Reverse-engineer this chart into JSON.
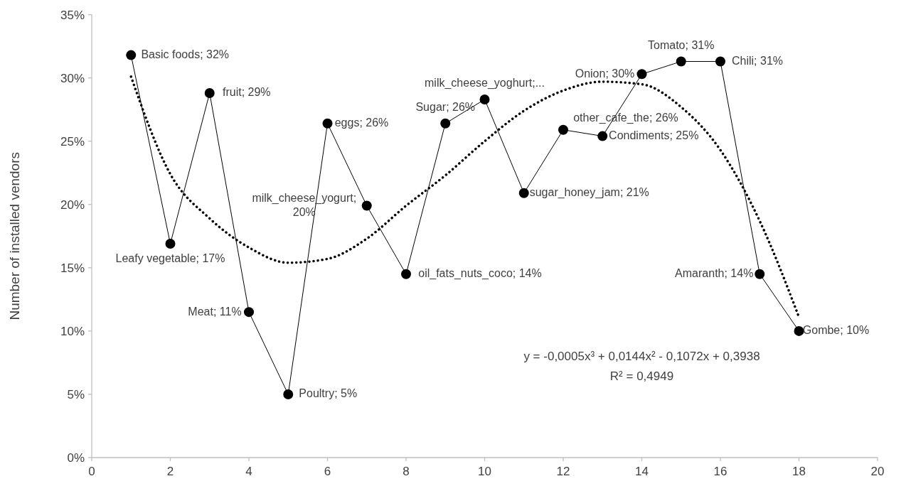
{
  "chart_data": {
    "type": "line",
    "ylabel": "Number of installed vendors",
    "x": [
      1,
      2,
      3,
      4,
      5,
      6,
      7,
      8,
      9,
      10,
      11,
      12,
      13,
      14,
      15,
      16,
      17,
      18
    ],
    "series": [
      {
        "color": "#000000",
        "marker": "circle",
        "line_style": "solid",
        "values": [
          31.8,
          16.9,
          28.8,
          11.5,
          5.0,
          26.4,
          19.9,
          14.5,
          26.4,
          28.3,
          20.9,
          25.9,
          25.4,
          30.3,
          31.3,
          31.3,
          14.5,
          10.0
        ],
        "value_labels": [
          "Basic foods; 32%",
          "Leafy vegetable; 17%",
          "fruit; 29%",
          "Meat; 11%",
          "Poultry; 5%",
          "eggs; 26%",
          "milk_cheese_yogurt;\n20%",
          "oil_fats_nuts_coco; 14%",
          "Sugar; 26%",
          "milk_cheese_yoghurt;...",
          "sugar_honey_jam; 21%",
          "other_cafe_the; 26%",
          "Condiments; 25%",
          "Onion; 30%",
          "Tomato; 31%",
          "Chili; 31%",
          "Amaranth; 14%",
          "Gombe; 10%"
        ]
      },
      {
        "color": "#000000",
        "marker": "none",
        "line_style": "dotted",
        "x": [
          1,
          2,
          3,
          4,
          5,
          6,
          7,
          8,
          9,
          10,
          11,
          12,
          13,
          14,
          15,
          16,
          17,
          18
        ],
        "values": [
          30.1,
          22.4,
          18.9,
          16.6,
          15.4,
          15.7,
          17.3,
          19.9,
          22.3,
          25.0,
          27.4,
          29.0,
          29.7,
          29.5,
          27.7,
          24.3,
          18.7,
          11.1
        ]
      }
    ],
    "xlim": [
      0,
      20
    ],
    "xticks": [
      0,
      2,
      4,
      6,
      8,
      10,
      12,
      14,
      16,
      18,
      20
    ],
    "ylim": [
      0,
      35
    ],
    "yticks": [
      {
        "value": 0,
        "label": "0%"
      },
      {
        "value": 5,
        "label": "5%"
      },
      {
        "value": 10,
        "label": "10%"
      },
      {
        "value": 15,
        "label": "15%"
      },
      {
        "value": 20,
        "label": "20%"
      },
      {
        "value": 25,
        "label": "25%"
      },
      {
        "value": 30,
        "label": "30%"
      },
      {
        "value": 35,
        "label": "35%"
      }
    ],
    "grid": false,
    "annotations": [
      "y = -0,0005x³ + 0,0144x² - 0,1072x + 0,3938\nR² = 0,4949"
    ]
  }
}
